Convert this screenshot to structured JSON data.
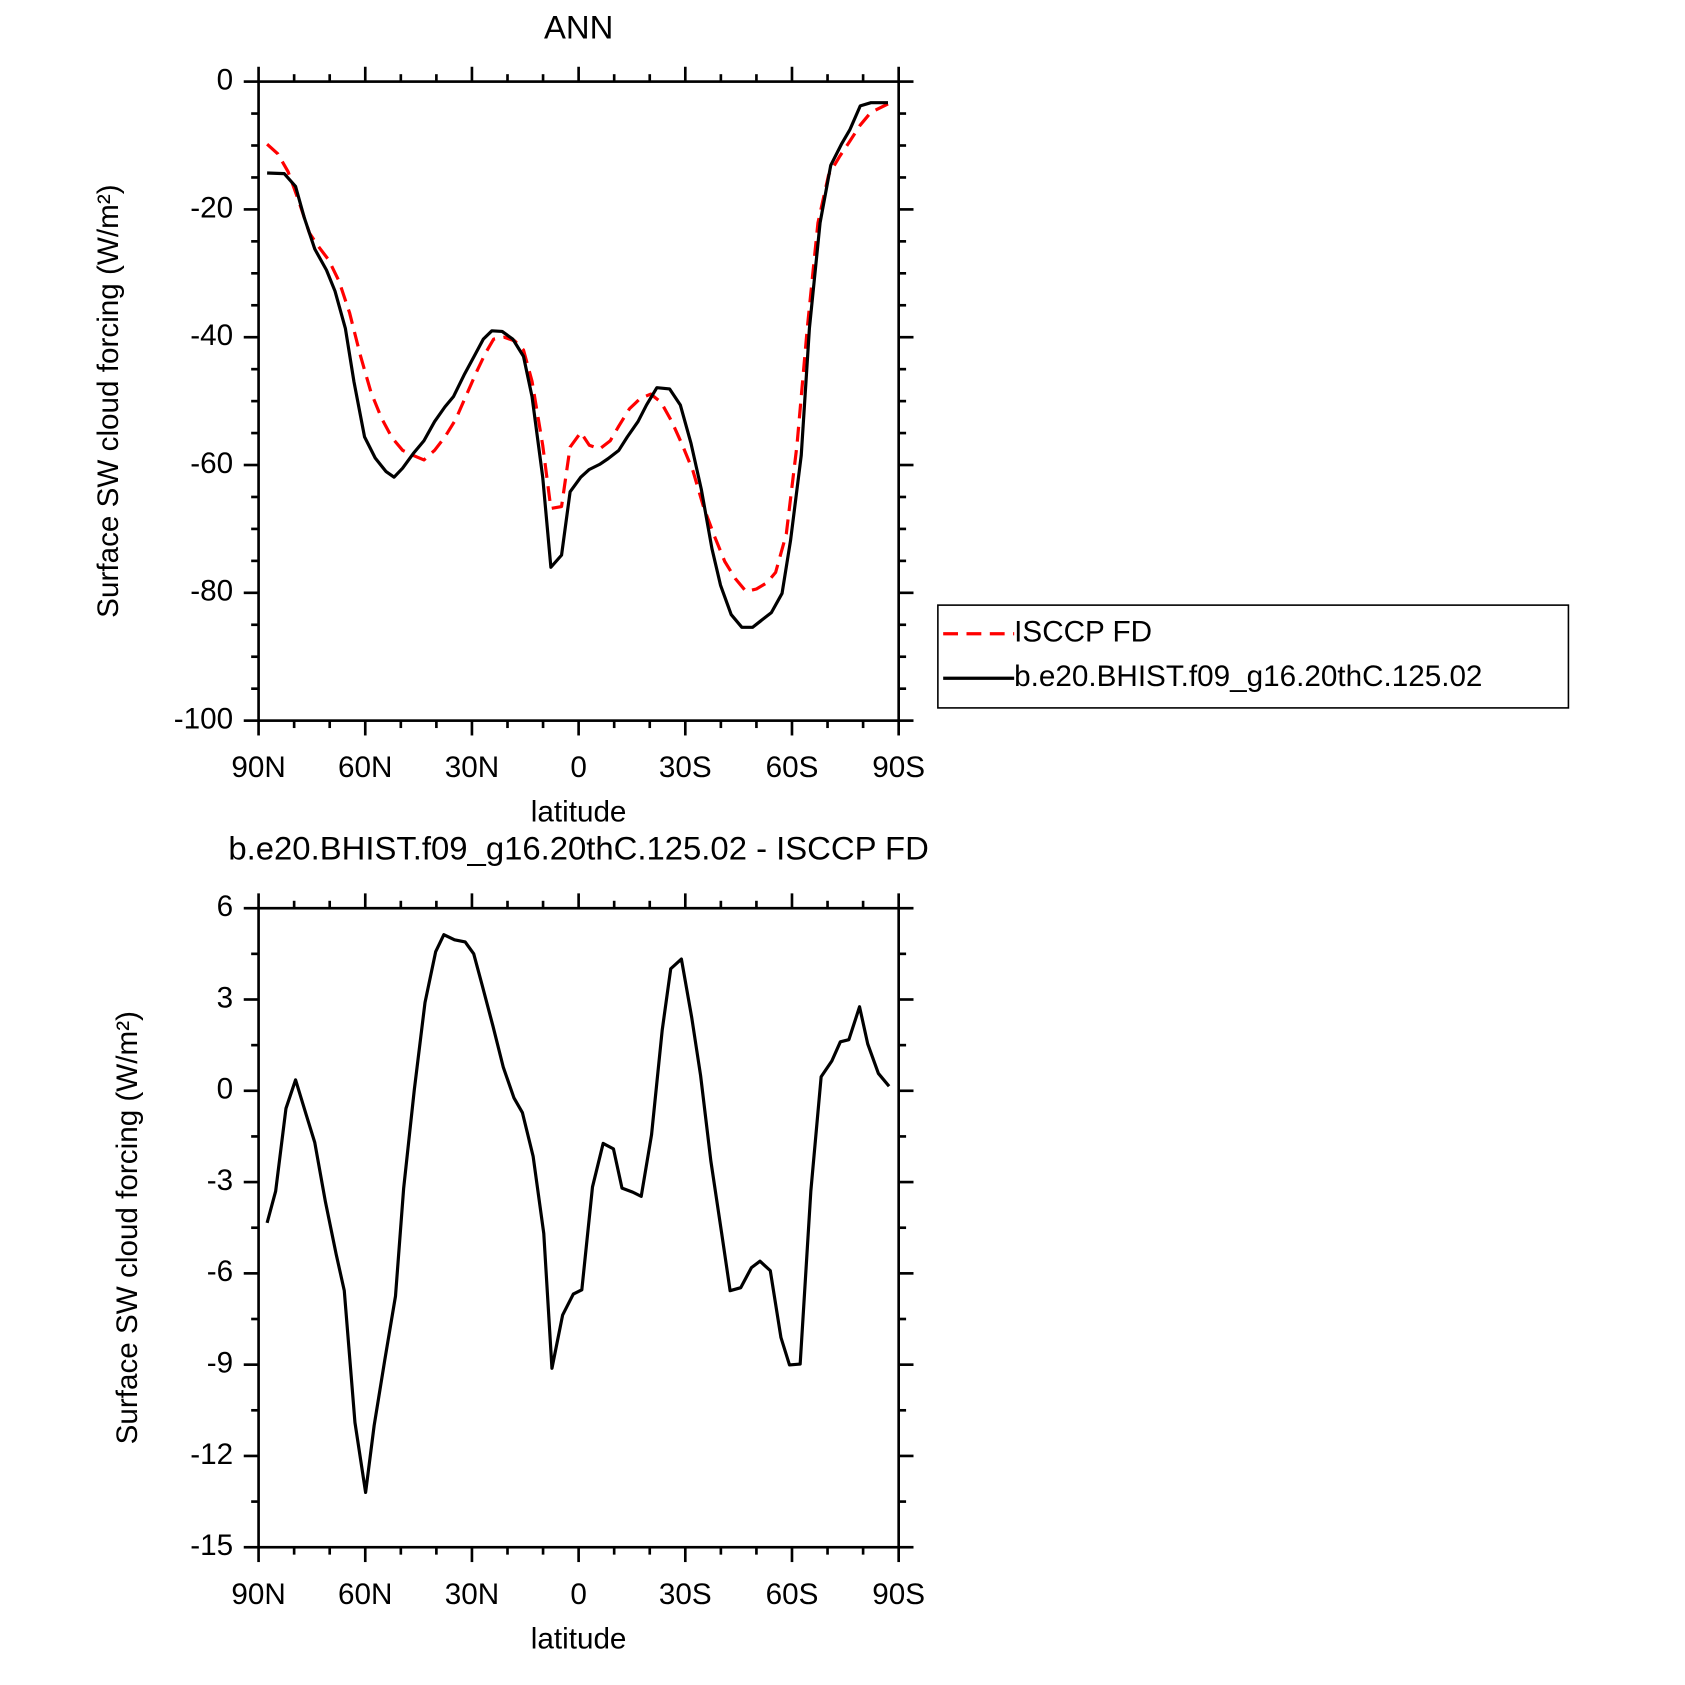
{
  "chart_data": [
    {
      "type": "line",
      "title": "ANN",
      "xlabel": "latitude",
      "ylabel": "Surface SW cloud forcing (W/m²)",
      "xlim": [
        90,
        -90
      ],
      "ylim": [
        -100,
        0
      ],
      "xticks": [
        {
          "value": 90,
          "label": "90N"
        },
        {
          "value": 60,
          "label": "60N"
        },
        {
          "value": 30,
          "label": "30N"
        },
        0,
        {
          "value": -30,
          "label": "30S"
        },
        {
          "value": -60,
          "label": "60S"
        },
        {
          "value": -90,
          "label": "90S"
        }
      ],
      "yticks": [
        0,
        -20,
        -40,
        -60,
        -80,
        -100
      ],
      "legend": "right",
      "series": [
        {
          "name": "ISCCP FD",
          "color": "#ff0000",
          "line_style": "dashed",
          "x": [
            87.6,
            84.6,
            81.7,
            78.7,
            75.7,
            73.3,
            70.3,
            67.4,
            64.4,
            61.4,
            58.4,
            55.4,
            52.5,
            49.5,
            46.5,
            43.5,
            40.5,
            37.6,
            34.6,
            31.6,
            28.6,
            26.2,
            23.9,
            20.9,
            17.9,
            15.5,
            13.1,
            10.1,
            7.8,
            4.8,
            2.4,
            -0.6,
            -3.0,
            -5.9,
            -8.9,
            -11.3,
            -14.3,
            -17.3,
            -20.3,
            -23.2,
            -26.2,
            -29.2,
            -32.2,
            -35.1,
            -38.1,
            -41.1,
            -44.1,
            -47.1,
            -50.0,
            -53.0,
            -55.4,
            -58.4,
            -61.4,
            -64.3,
            -67.3,
            -70.3,
            -73.3,
            -76.3,
            -79.2,
            -82.2,
            -87.0
          ],
          "values": [
            -9.8,
            -11.3,
            -14.1,
            -18.7,
            -23.7,
            -25.7,
            -27.9,
            -31.2,
            -36.2,
            -42.8,
            -48.6,
            -52.7,
            -55.7,
            -57.7,
            -58.5,
            -59.2,
            -57.7,
            -55.6,
            -52.9,
            -49.1,
            -45.3,
            -42.5,
            -40.3,
            -40.0,
            -40.6,
            -42.0,
            -46.9,
            -56.9,
            -66.8,
            -66.5,
            -57.2,
            -54.9,
            -56.9,
            -57.5,
            -56.2,
            -53.9,
            -51.2,
            -49.6,
            -48.9,
            -50.2,
            -53.2,
            -56.9,
            -61.0,
            -66.5,
            -71.0,
            -75.1,
            -77.8,
            -79.8,
            -79.4,
            -78.4,
            -76.8,
            -70.8,
            -56.9,
            -38.6,
            -22.1,
            -14.6,
            -11.8,
            -9.3,
            -6.8,
            -4.8,
            -3.5
          ]
        },
        {
          "name": "b.e20.BHIST.f09_g16.20thC.125.02",
          "color": "#000000",
          "line_style": "solid",
          "x": [
            87.6,
            82.8,
            79.6,
            77.2,
            74.2,
            70.9,
            68.5,
            65.6,
            63.2,
            60.2,
            57.2,
            54.2,
            51.9,
            49.5,
            46.5,
            43.5,
            40.5,
            37.6,
            35.2,
            32.2,
            29.2,
            26.8,
            24.4,
            21.5,
            18.5,
            15.5,
            13.1,
            10.1,
            7.8,
            4.8,
            2.4,
            -0.6,
            -3.0,
            -5.9,
            -8.3,
            -11.3,
            -13.7,
            -16.7,
            -19.1,
            -22.0,
            -25.6,
            -28.6,
            -31.6,
            -34.5,
            -37.5,
            -39.9,
            -42.9,
            -45.9,
            -48.9,
            -51.2,
            -54.2,
            -57.2,
            -59.6,
            -62.6,
            -64.9,
            -67.9,
            -70.9,
            -73.9,
            -76.3,
            -79.2,
            -82.2,
            -87.0
          ],
          "values": [
            -14.3,
            -14.4,
            -16.4,
            -21.2,
            -26.2,
            -29.5,
            -32.8,
            -38.6,
            -46.9,
            -55.6,
            -58.9,
            -61.0,
            -61.9,
            -60.5,
            -58.2,
            -56.2,
            -53.2,
            -50.9,
            -49.3,
            -45.9,
            -42.8,
            -40.3,
            -39.0,
            -39.1,
            -40.3,
            -43.0,
            -49.3,
            -61.9,
            -76.0,
            -74.1,
            -64.2,
            -61.9,
            -60.7,
            -59.9,
            -59.0,
            -57.7,
            -55.6,
            -53.2,
            -50.6,
            -47.9,
            -48.1,
            -50.6,
            -56.6,
            -63.8,
            -73.1,
            -78.8,
            -83.4,
            -85.4,
            -85.4,
            -84.4,
            -83.1,
            -80.1,
            -71.8,
            -58.5,
            -38.6,
            -22.1,
            -13.1,
            -9.8,
            -7.5,
            -3.8,
            -3.3,
            -3.3
          ]
        }
      ]
    },
    {
      "type": "line",
      "title": "b.e20.BHIST.f09_g16.20thC.125.02 - ISCCP FD",
      "xlabel": "latitude",
      "ylabel": "Surface SW cloud forcing (W/m²)",
      "xlim": [
        90,
        -90
      ],
      "ylim": [
        -15,
        6
      ],
      "xticks": [
        {
          "value": 90,
          "label": "90N"
        },
        {
          "value": 60,
          "label": "60N"
        },
        {
          "value": 30,
          "label": "30N"
        },
        0,
        {
          "value": -30,
          "label": "30S"
        },
        {
          "value": -60,
          "label": "60S"
        },
        {
          "value": -90,
          "label": "90S"
        }
      ],
      "yticks": [
        6,
        3,
        0,
        -3,
        -6,
        -9,
        -12,
        -15
      ],
      "series": [
        {
          "color": "#000000",
          "line_style": "solid",
          "x": [
            87.6,
            85.2,
            82.3,
            79.6,
            76.6,
            74.2,
            71.2,
            68.2,
            65.9,
            62.9,
            59.9,
            57.5,
            54.5,
            51.5,
            49.2,
            46.2,
            43.2,
            40.2,
            37.9,
            34.9,
            31.9,
            29.5,
            27.1,
            24.1,
            21.2,
            18.2,
            15.8,
            12.8,
            9.8,
            7.5,
            4.5,
            1.5,
            -0.9,
            -3.9,
            -6.9,
            -9.8,
            -12.2,
            -15.2,
            -17.6,
            -20.5,
            -23.5,
            -25.9,
            -28.9,
            -31.8,
            -34.3,
            -37.2,
            -40.2,
            -42.6,
            -45.6,
            -48.6,
            -51.0,
            -53.9,
            -56.9,
            -59.3,
            -62.3,
            -65.3,
            -68.2,
            -71.2,
            -73.6,
            -76.0,
            -79.0,
            -81.3,
            -84.3,
            -87.3
          ],
          "values": [
            -4.34,
            -3.3,
            -0.58,
            0.36,
            -0.79,
            -1.7,
            -3.65,
            -5.36,
            -6.57,
            -10.9,
            -13.2,
            -11.0,
            -8.84,
            -6.75,
            -3.2,
            0.04,
            2.9,
            4.57,
            5.13,
            4.96,
            4.89,
            4.5,
            3.46,
            2.13,
            0.78,
            -0.23,
            -0.72,
            -2.15,
            -4.69,
            -9.12,
            -7.37,
            -6.68,
            -6.54,
            -3.16,
            -1.73,
            -1.91,
            -3.2,
            -3.33,
            -3.47,
            -1.45,
            1.99,
            4.01,
            4.33,
            2.41,
            0.5,
            -2.32,
            -4.66,
            -6.57,
            -6.47,
            -5.81,
            -5.6,
            -5.91,
            -8.11,
            -9.01,
            -8.98,
            -3.3,
            0.46,
            0.98,
            1.61,
            1.68,
            2.76,
            1.54,
            0.57,
            0.15
          ]
        }
      ]
    }
  ]
}
